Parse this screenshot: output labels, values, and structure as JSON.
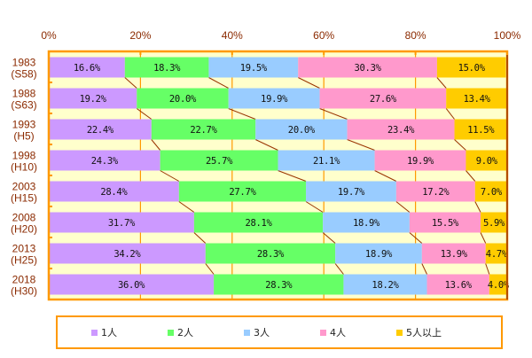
{
  "chart_data": {
    "type": "bar",
    "orientation": "horizontal",
    "stacked": "percent",
    "title": "",
    "xlabel": "",
    "ylabel": "",
    "xlim": [
      0,
      100
    ],
    "x_ticks": [
      "0%",
      "20%",
      "40%",
      "60%",
      "80%",
      "100%"
    ],
    "x_tick_values": [
      0,
      20,
      40,
      60,
      80,
      100
    ],
    "grid": true,
    "legend_position": "bottom",
    "categories": [
      {
        "year": "1983",
        "era": "(S58)"
      },
      {
        "year": "1988",
        "era": "(S63)"
      },
      {
        "year": "1993",
        "era": "(H5)"
      },
      {
        "year": "1998",
        "era": "(H10)"
      },
      {
        "year": "2003",
        "era": "(H15)"
      },
      {
        "year": "2008",
        "era": "(H20)"
      },
      {
        "year": "2013",
        "era": "(H25)"
      },
      {
        "year": "2018",
        "era": "(H30)"
      }
    ],
    "series": [
      {
        "name": "1人",
        "color": "#cc99ff",
        "values": [
          16.6,
          19.2,
          22.4,
          24.3,
          28.4,
          31.7,
          34.2,
          36.0
        ]
      },
      {
        "name": "2人",
        "color": "#66ff66",
        "values": [
          18.3,
          20.0,
          22.7,
          25.7,
          27.7,
          28.1,
          28.3,
          28.3
        ]
      },
      {
        "name": "3人",
        "color": "#99ccff",
        "values": [
          19.5,
          19.9,
          20.0,
          21.1,
          19.7,
          18.9,
          18.9,
          18.2
        ]
      },
      {
        "name": "4人",
        "color": "#ff99cc",
        "values": [
          30.3,
          27.6,
          23.4,
          19.9,
          17.2,
          15.5,
          13.9,
          13.6
        ]
      },
      {
        "name": "5人以上",
        "color": "#ffcc00",
        "values": [
          15.0,
          13.4,
          11.5,
          9.0,
          7.0,
          5.9,
          4.7,
          4.0
        ]
      }
    ],
    "value_labels": [
      [
        "16.6%",
        "18.3%",
        "19.5%",
        "30.3%",
        "15.0%"
      ],
      [
        "19.2%",
        "20.0%",
        "19.9%",
        "27.6%",
        "13.4%"
      ],
      [
        "22.4%",
        "22.7%",
        "20.0%",
        "23.4%",
        "11.5%"
      ],
      [
        "24.3%",
        "25.7%",
        "21.1%",
        "19.9%",
        "9.0%"
      ],
      [
        "28.4%",
        "27.7%",
        "19.7%",
        "17.2%",
        "7.0%"
      ],
      [
        "31.7%",
        "28.1%",
        "18.9%",
        "15.5%",
        "5.9%"
      ],
      [
        "34.2%",
        "28.3%",
        "18.9%",
        "13.9%",
        "4.7%"
      ],
      [
        "36.0%",
        "28.3%",
        "18.2%",
        "13.6%",
        "4.0%"
      ]
    ],
    "colors": {
      "plot_background": "#ffffcc",
      "frame": "#ff9900",
      "connector": "#993300",
      "axis_text": "#8b2a00"
    }
  }
}
